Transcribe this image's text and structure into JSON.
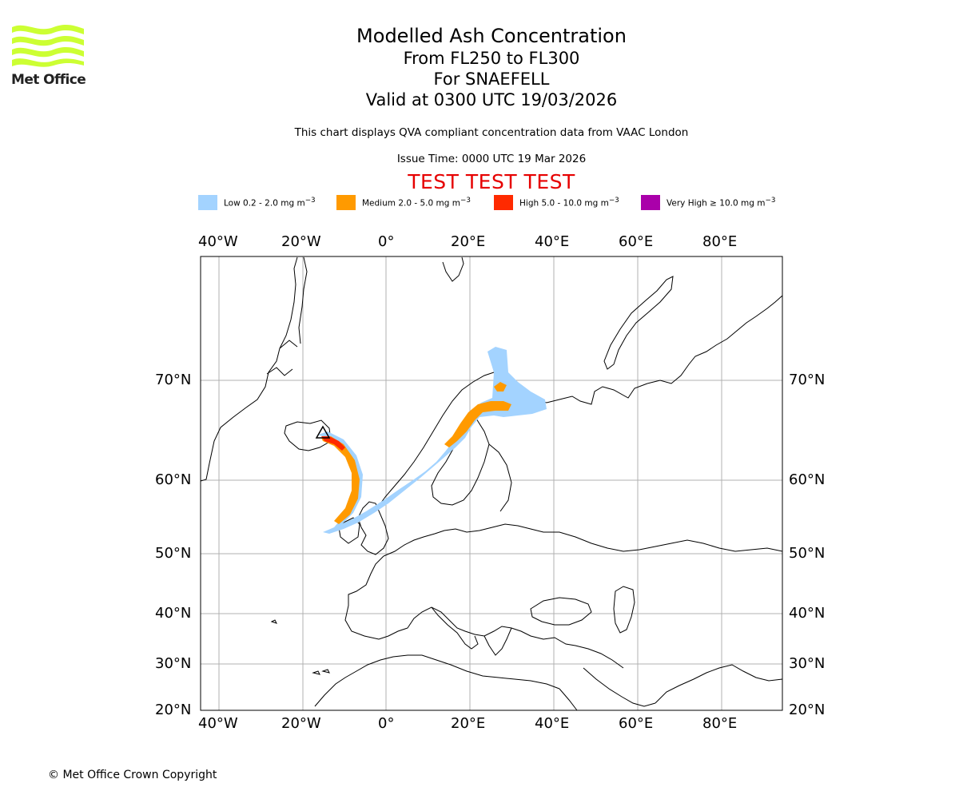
{
  "logo": {
    "text": "Met Office",
    "color": "#ccff33"
  },
  "title": {
    "main": "Modelled Ash Concentration",
    "levels": "From FL250 to FL300",
    "volcano": "For SNAEFELL",
    "valid": "Valid at 0300 UTC 19/03/2026"
  },
  "subtitle": "This chart displays QVA compliant concentration data from VAAC London",
  "issue_time": "Issue Time: 0000 UTC 19 Mar 2026",
  "test_banner": "TEST TEST TEST",
  "legend": [
    {
      "label_main": "Low 0.2 - 2.0 mg m",
      "sup": "−3",
      "color": "#a3d3ff"
    },
    {
      "label_main": "Medium 2.0 - 5.0 mg m",
      "sup": "−3",
      "color": "#ff9a00"
    },
    {
      "label_main": "High 5.0 - 10.0 mg m",
      "sup": "−3",
      "color": "#ff2a00"
    },
    {
      "label_main": "Very High ≥ 10.0 mg m",
      "sup": "−3",
      "color": "#aa00aa"
    }
  ],
  "axes": {
    "lon_labels": [
      "40°W",
      "20°W",
      "0°",
      "20°E",
      "40°E",
      "60°E",
      "80°E"
    ],
    "lat_labels": [
      "70°N",
      "60°N",
      "50°N",
      "40°N",
      "30°N",
      "20°N"
    ]
  },
  "copyright": "© Met Office Crown Copyright"
}
